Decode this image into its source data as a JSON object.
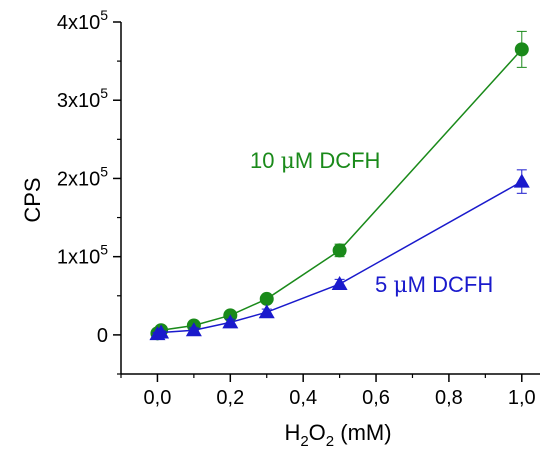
{
  "chart_data": {
    "type": "line",
    "title": "",
    "xlabel": {
      "main": "H",
      "sub": "2",
      "main2": "O",
      "sub2": "2",
      "suffix": " (mM)"
    },
    "ylabel": "CPS",
    "xlim": [
      -0.1,
      1.05
    ],
    "ylim": [
      -50000,
      400000
    ],
    "xticks": [
      {
        "v": 0.0,
        "label": "0,0"
      },
      {
        "v": 0.2,
        "label": "0,2"
      },
      {
        "v": 0.4,
        "label": "0,4"
      },
      {
        "v": 0.6,
        "label": "0,6"
      },
      {
        "v": 0.8,
        "label": "0,8"
      },
      {
        "v": 1.0,
        "label": "1,0"
      }
    ],
    "xminor": [
      -0.1,
      0.1,
      0.3,
      0.5,
      0.7,
      0.9
    ],
    "yticks": [
      {
        "v": 0,
        "mant": "0",
        "exp": ""
      },
      {
        "v": 100000,
        "mant": "1x10",
        "exp": "5"
      },
      {
        "v": 200000,
        "mant": "2x10",
        "exp": "5"
      },
      {
        "v": 300000,
        "mant": "3x10",
        "exp": "5"
      },
      {
        "v": 400000,
        "mant": "4x10",
        "exp": "5"
      }
    ],
    "yminor": [
      -50000,
      50000,
      150000,
      250000,
      350000
    ],
    "grid": false,
    "series": [
      {
        "name": "10 μM DCFH",
        "color": "#1a8a1a",
        "marker": "circle",
        "x": [
          0.0,
          0.01,
          0.1,
          0.2,
          0.3,
          0.5,
          1.0
        ],
        "y": [
          2000,
          6000,
          12000,
          25000,
          46000,
          108000,
          365000
        ],
        "err": [
          2000,
          2000,
          3000,
          3000,
          4000,
          8000,
          23000
        ]
      },
      {
        "name": "5 μM DCFH",
        "color": "#1a1acc",
        "marker": "triangle",
        "x": [
          0.0,
          0.01,
          0.1,
          0.2,
          0.3,
          0.5,
          1.0
        ],
        "y": [
          1000,
          3000,
          6000,
          16000,
          29000,
          65000,
          196000
        ],
        "err": [
          2000,
          2000,
          3000,
          4000,
          4000,
          6000,
          15000
        ]
      }
    ],
    "annotations": [
      {
        "series": 0,
        "prefix": "10 ",
        "mu": "μ",
        "suffix": "M DCFH"
      },
      {
        "series": 1,
        "prefix": "5 ",
        "mu": "μ",
        "suffix": "M DCFH"
      }
    ]
  }
}
